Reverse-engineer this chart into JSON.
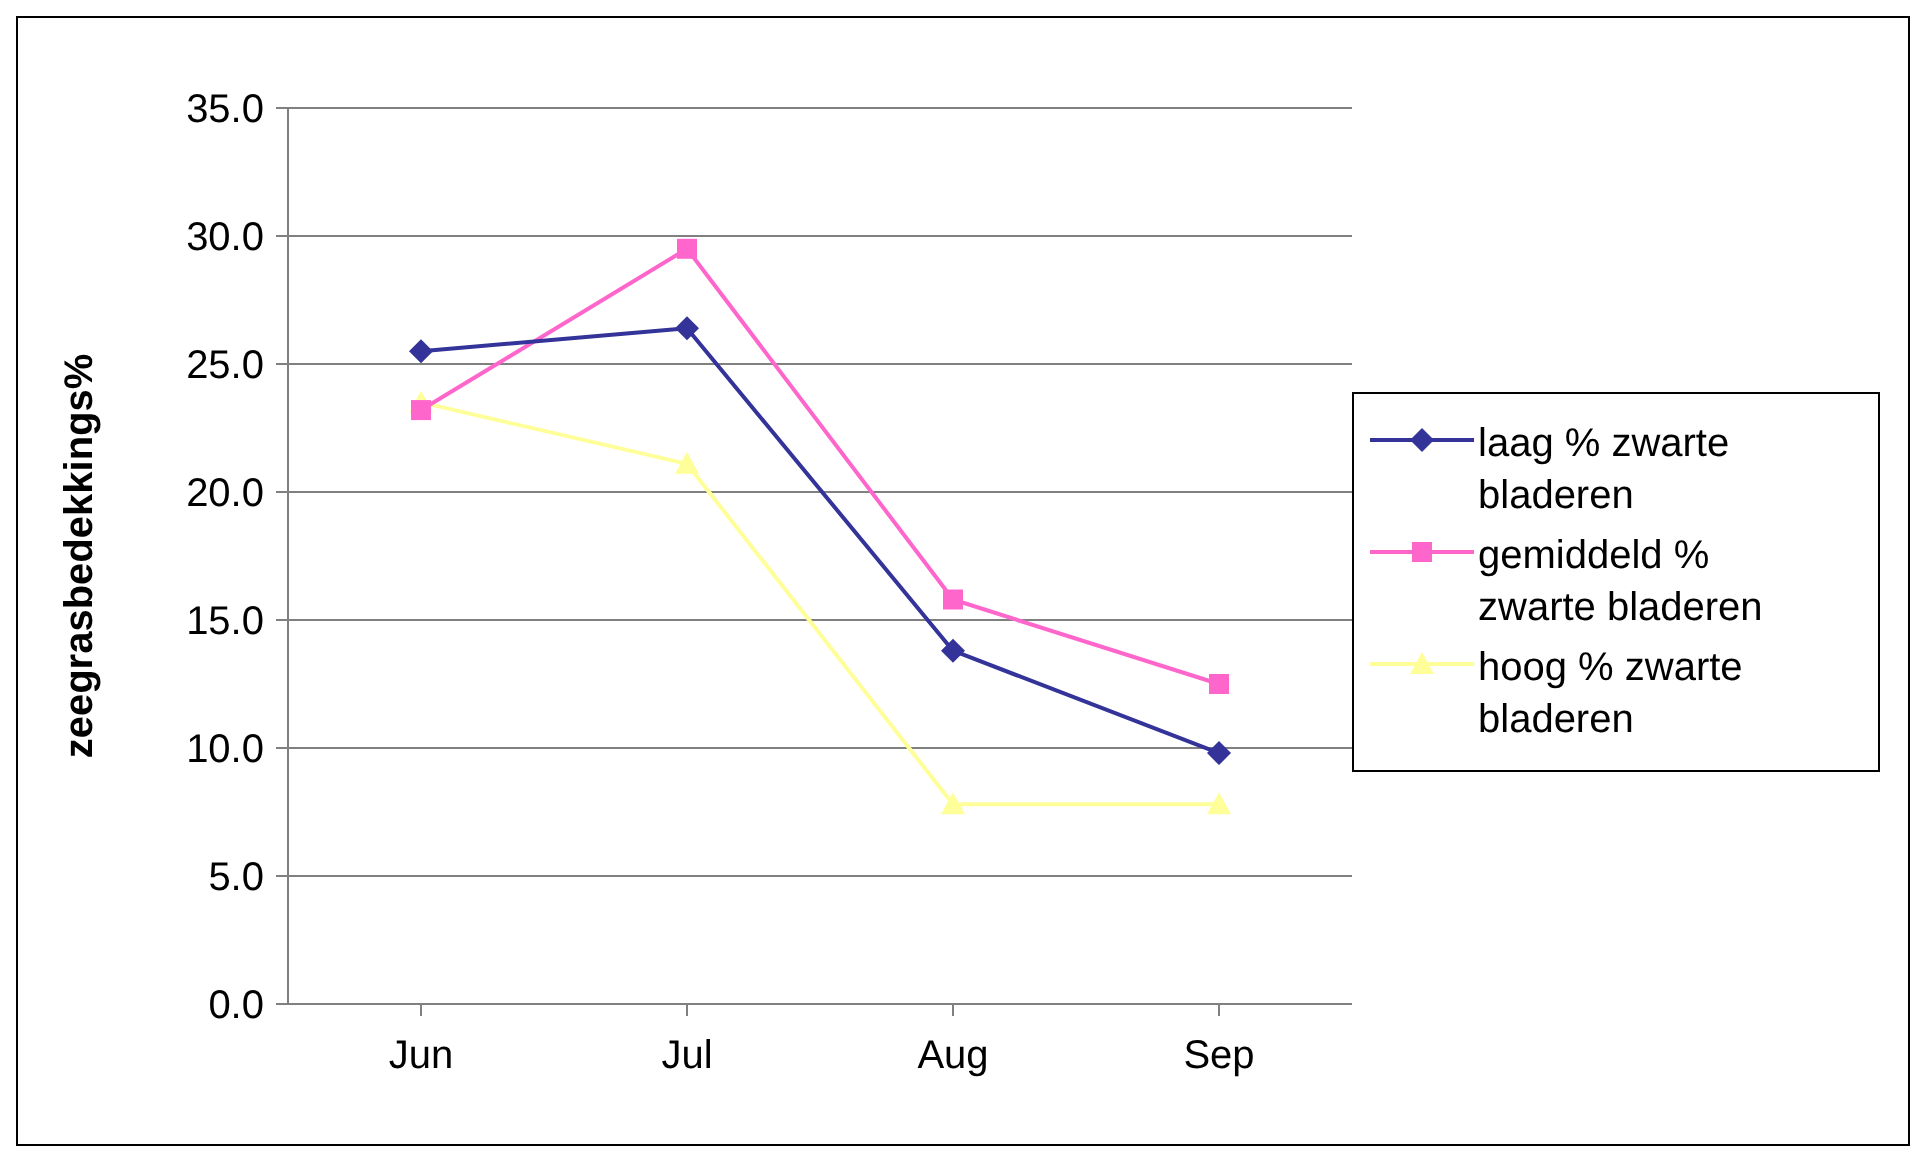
{
  "chart_data": {
    "type": "line",
    "ylabel": "zeegrasbedekkings%",
    "categories": [
      "Jun",
      "Jul",
      "Aug",
      "Sep"
    ],
    "series": [
      {
        "name": "laag % zwarte bladeren",
        "color": "#333399",
        "marker": "diamond",
        "values": [
          25.5,
          26.4,
          13.8,
          9.8
        ]
      },
      {
        "name": "gemiddeld % zwarte bladeren",
        "color": "#ff66cc",
        "marker": "square",
        "values": [
          23.2,
          29.5,
          15.8,
          12.5
        ]
      },
      {
        "name": "hoog % zwarte bladeren",
        "color": "#ffff99",
        "marker": "triangle",
        "values": [
          23.5,
          21.1,
          7.8,
          7.8
        ]
      }
    ],
    "ylim": [
      0,
      35
    ],
    "yticks": [
      {
        "value": 0,
        "label": "0.0"
      },
      {
        "value": 5,
        "label": "5.0"
      },
      {
        "value": 10,
        "label": "10.0"
      },
      {
        "value": 15,
        "label": "15.0"
      },
      {
        "value": 20,
        "label": "20.0"
      },
      {
        "value": 25,
        "label": "25.0"
      },
      {
        "value": 30,
        "label": "30.0"
      },
      {
        "value": 35,
        "label": "35.0"
      }
    ],
    "grid": "y",
    "legend": "right"
  }
}
